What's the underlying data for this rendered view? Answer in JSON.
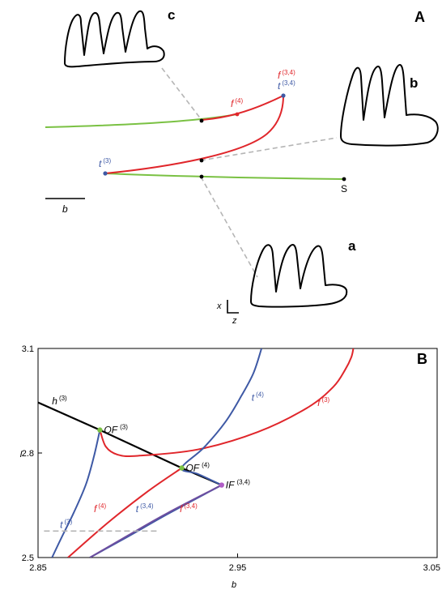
{
  "colors": {
    "red": "#e0262b",
    "green": "#7ac143",
    "blue": "#3e59a5",
    "purple": "#6d4ea0",
    "gray": "#b5b5b5",
    "black": "#000000",
    "magenta": "#b05cc6"
  },
  "panel_a": {
    "letter": "A",
    "scalebar_label": "b",
    "traces": [
      {
        "letter": "a",
        "spikes": 3
      },
      {
        "letter": "b",
        "spikes": 3
      },
      {
        "letter": "c",
        "spikes": 4
      }
    ],
    "curve_labels": [
      {
        "id": "t3",
        "base": "t",
        "sup": "(3)",
        "color": "blue"
      },
      {
        "id": "f4",
        "base": "f",
        "sup": "(4)",
        "color": "red"
      },
      {
        "id": "f34",
        "base": "f",
        "sup": "(3,4)",
        "color": "red"
      },
      {
        "id": "t34",
        "base": "t",
        "sup": "(3,4)",
        "color": "blue"
      },
      {
        "id": "S",
        "base": "S",
        "sup": "",
        "color": "black"
      }
    ],
    "axis_x_label": "x",
    "axis_z_label": "z"
  },
  "chart_data": {
    "type": "line",
    "panel_letter": "B",
    "xlabel": "b",
    "ylabel": "I",
    "xlim": [
      2.85,
      3.05
    ],
    "ylim": [
      2.5,
      3.1
    ],
    "xticks": [
      2.85,
      2.95,
      3.05
    ],
    "xtick_labels": [
      "2.85",
      "2.95",
      "3.05"
    ],
    "yticks": [
      2.5,
      2.8,
      3.1
    ],
    "ytick_labels": [
      "2.5",
      "2.8",
      "3.1"
    ],
    "series": [
      {
        "id": "h3",
        "base": "h",
        "sup": "(3)",
        "color": "black",
        "x": [
          2.85,
          2.881,
          2.922,
          2.942
        ],
        "y": [
          2.945,
          2.866,
          2.757,
          2.708
        ]
      },
      {
        "id": "t3",
        "base": "t",
        "sup": "(3)",
        "color": "blue",
        "x": [
          2.857,
          2.862,
          2.868,
          2.874,
          2.878,
          2.881
        ],
        "y": [
          2.5,
          2.56,
          2.63,
          2.71,
          2.79,
          2.866
        ]
      },
      {
        "id": "f3",
        "base": "f",
        "sup": "(3)",
        "color": "red",
        "x": [
          2.881,
          2.884,
          2.89,
          2.9,
          2.93,
          2.96,
          2.985,
          2.998,
          3.004,
          3.007,
          3.008
        ],
        "y": [
          2.866,
          2.818,
          2.795,
          2.792,
          2.81,
          2.86,
          2.93,
          2.99,
          3.04,
          3.075,
          3.1
        ]
      },
      {
        "id": "t4",
        "base": "t",
        "sup": "(4)",
        "color": "blue",
        "x": [
          2.942,
          2.93,
          2.922,
          2.933,
          2.944,
          2.952,
          2.958,
          2.962
        ],
        "y": [
          2.708,
          2.74,
          2.757,
          2.815,
          2.89,
          2.965,
          3.03,
          3.1
        ]
      },
      {
        "id": "f4",
        "base": "f",
        "sup": "(4)",
        "color": "red",
        "x": [
          2.865,
          2.885,
          2.905,
          2.922
        ],
        "y": [
          2.5,
          2.6,
          2.69,
          2.757
        ]
      },
      {
        "id": "t34",
        "base": "t",
        "sup": "(3,4)",
        "color": "blue",
        "x": [
          2.876,
          2.895,
          2.915,
          2.942
        ],
        "y": [
          2.5,
          2.56,
          2.625,
          2.708
        ]
      },
      {
        "id": "f34",
        "base": "f",
        "sup": "(3,4)",
        "color": "purple",
        "x": [
          2.876,
          2.895,
          2.915,
          2.942
        ],
        "y": [
          2.5,
          2.563,
          2.628,
          2.708
        ]
      },
      {
        "id": "dashed",
        "base": "",
        "sup": "",
        "color": "gray",
        "dashed": true,
        "x": [
          2.853,
          2.91
        ],
        "y": [
          2.576,
          2.576
        ]
      }
    ],
    "points": [
      {
        "id": "OF3",
        "base": "OF",
        "sup": "(3)",
        "x": 2.881,
        "y": 2.866,
        "color": "green"
      },
      {
        "id": "OF4",
        "base": "OF",
        "sup": "(4)",
        "x": 2.922,
        "y": 2.757,
        "color": "green"
      },
      {
        "id": "IF34",
        "base": "IF",
        "sup": "(3,4)",
        "x": 2.942,
        "y": 2.708,
        "color": "magenta"
      }
    ],
    "series_labels": [
      {
        "ref": "h3",
        "x": 2.857,
        "y": 2.94,
        "color": "black"
      },
      {
        "ref": "t4",
        "x": 2.957,
        "y": 2.95,
        "color": "blue"
      },
      {
        "ref": "f3",
        "x": 2.99,
        "y": 2.935,
        "color": "red"
      },
      {
        "ref": "t3",
        "x": 2.861,
        "y": 2.585,
        "color": "blue"
      },
      {
        "ref": "f4",
        "x": 2.878,
        "y": 2.63,
        "color": "red"
      },
      {
        "ref": "t34",
        "x": 2.899,
        "y": 2.63,
        "color": "blue"
      },
      {
        "ref": "f34",
        "x": 2.921,
        "y": 2.63,
        "color": "red"
      }
    ]
  }
}
